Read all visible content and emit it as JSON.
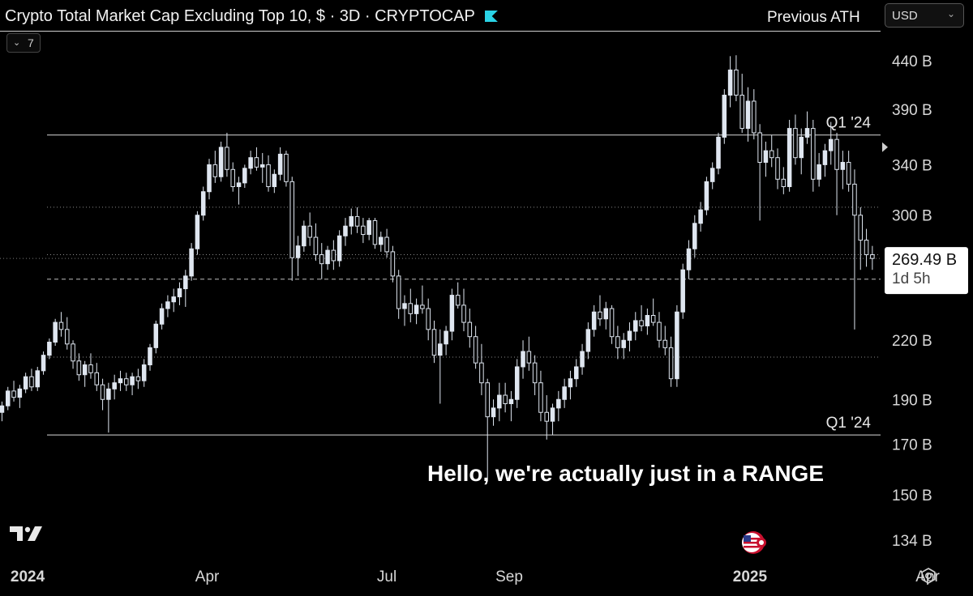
{
  "header": {
    "title": "Crypto Total Market Cap Excluding Top 10, $ · 3D · CRYPTOCAP",
    "previous_ath": "Previous ATH",
    "currency": "USD",
    "indicator_count": "7"
  },
  "icons": {
    "logo": "tradingview-logo",
    "flag": "us-flag-icon",
    "settings": "settings-gear-icon",
    "chevron": "chevron-down-icon"
  },
  "colors": {
    "background": "#000000",
    "candle_up_fill": "#dfe6f0",
    "candle_down_fill": "#000000",
    "candle_outline": "#dfe6f0",
    "brand": "#2ad3e6"
  },
  "chart_data": {
    "type": "candlestick",
    "title": "Crypto Total Market Cap Excluding Top 10, $ · 3D · CRYPTOCAP",
    "annotation": "Hello, we're actually just in a RANGE",
    "y_axis": {
      "scale": "log",
      "unit": "B",
      "ticks": [
        {
          "value": 440,
          "label": "440 B"
        },
        {
          "value": 390,
          "label": "390 B"
        },
        {
          "value": 340,
          "label": "340 B"
        },
        {
          "value": 300,
          "label": "300 B"
        },
        {
          "value": 220,
          "label": "220 B"
        },
        {
          "value": 190,
          "label": "190 B"
        },
        {
          "value": 170,
          "label": "170 B"
        },
        {
          "value": 150,
          "label": "150 B"
        },
        {
          "value": 134,
          "label": "134 B"
        }
      ],
      "range": [
        128,
        472
      ]
    },
    "x_axis": {
      "range": [
        "2023-12-18",
        "2025-04-24"
      ],
      "ticks": [
        {
          "date": "2024-01-01",
          "label": "2024",
          "bold": true
        },
        {
          "date": "2024-04-01",
          "label": "Apr",
          "bold": false
        },
        {
          "date": "2024-07-01",
          "label": "Jul",
          "bold": false
        },
        {
          "date": "2024-09-01",
          "label": "Sep",
          "bold": false
        },
        {
          "date": "2025-01-01",
          "label": "2025",
          "bold": true
        },
        {
          "date": "2025-04-01",
          "label": "Apr",
          "bold": false
        }
      ]
    },
    "levels": [
      {
        "value": 366,
        "label": "Q1 '24",
        "style": "solid"
      },
      {
        "value": 174,
        "label": "Q1 '24",
        "style": "solid"
      },
      {
        "value": 306,
        "label": "",
        "style": "dotted"
      },
      {
        "value": 272,
        "label": "",
        "style": "dotted"
      },
      {
        "value": 256,
        "label": "",
        "style": "dashed"
      },
      {
        "value": 211,
        "label": "",
        "style": "dotted"
      }
    ],
    "current_price": {
      "value": 269.49,
      "label": "269.49 B",
      "countdown": "1d 5h"
    },
    "candles_start": "2023-12-19",
    "candle_interval_days": 3,
    "candles": [
      [
        184,
        189,
        180,
        187
      ],
      [
        187,
        196,
        185,
        194
      ],
      [
        194,
        199,
        189,
        191
      ],
      [
        191,
        197,
        186,
        195
      ],
      [
        195,
        203,
        193,
        201
      ],
      [
        201,
        205,
        194,
        196
      ],
      [
        196,
        206,
        194,
        204
      ],
      [
        204,
        214,
        202,
        212
      ],
      [
        212,
        221,
        210,
        219
      ],
      [
        219,
        232,
        217,
        230
      ],
      [
        230,
        236,
        222,
        226
      ],
      [
        226,
        233,
        215,
        218
      ],
      [
        218,
        220,
        205,
        209
      ],
      [
        209,
        213,
        199,
        202
      ],
      [
        202,
        209,
        196,
        207
      ],
      [
        207,
        213,
        200,
        203
      ],
      [
        203,
        208,
        194,
        197
      ],
      [
        197,
        200,
        185,
        190
      ],
      [
        190,
        198,
        175,
        195
      ],
      [
        195,
        202,
        190,
        198
      ],
      [
        198,
        204,
        194,
        200
      ],
      [
        200,
        203,
        194,
        197
      ],
      [
        197,
        203,
        192,
        201
      ],
      [
        201,
        205,
        195,
        199
      ],
      [
        199,
        210,
        196,
        207
      ],
      [
        207,
        218,
        204,
        216
      ],
      [
        216,
        231,
        213,
        229
      ],
      [
        229,
        241,
        226,
        238
      ],
      [
        238,
        246,
        233,
        242
      ],
      [
        242,
        250,
        236,
        245
      ],
      [
        245,
        254,
        240,
        250
      ],
      [
        250,
        262,
        239,
        258
      ],
      [
        258,
        280,
        255,
        276
      ],
      [
        276,
        303,
        272,
        300
      ],
      [
        300,
        322,
        296,
        318
      ],
      [
        318,
        345,
        312,
        340
      ],
      [
        340,
        352,
        325,
        330
      ],
      [
        330,
        360,
        326,
        355
      ],
      [
        355,
        368,
        330,
        336
      ],
      [
        336,
        342,
        318,
        322
      ],
      [
        322,
        330,
        308,
        325
      ],
      [
        325,
        340,
        321,
        337
      ],
      [
        337,
        352,
        332,
        346
      ],
      [
        346,
        355,
        335,
        338
      ],
      [
        338,
        350,
        325,
        340
      ],
      [
        340,
        348,
        318,
        322
      ],
      [
        322,
        336,
        317,
        332
      ],
      [
        332,
        355,
        327,
        349
      ],
      [
        349,
        352,
        322,
        326
      ],
      [
        326,
        330,
        255,
        270
      ],
      [
        270,
        285,
        258,
        278
      ],
      [
        278,
        296,
        274,
        292
      ],
      [
        292,
        302,
        278,
        284
      ],
      [
        284,
        294,
        268,
        272
      ],
      [
        272,
        280,
        256,
        266
      ],
      [
        266,
        278,
        262,
        275
      ],
      [
        275,
        282,
        262,
        268
      ],
      [
        268,
        289,
        264,
        285
      ],
      [
        285,
        298,
        278,
        292
      ],
      [
        292,
        305,
        286,
        299
      ],
      [
        299,
        306,
        287,
        292
      ],
      [
        292,
        298,
        280,
        286
      ],
      [
        286,
        298,
        282,
        296
      ],
      [
        296,
        298,
        276,
        279
      ],
      [
        279,
        288,
        274,
        284
      ],
      [
        284,
        290,
        270,
        274
      ],
      [
        274,
        278,
        254,
        258
      ],
      [
        258,
        262,
        232,
        238
      ],
      [
        238,
        246,
        228,
        241
      ],
      [
        241,
        250,
        230,
        235
      ],
      [
        235,
        244,
        229,
        240
      ],
      [
        240,
        252,
        235,
        238
      ],
      [
        238,
        244,
        220,
        226
      ],
      [
        226,
        231,
        208,
        212
      ],
      [
        212,
        226,
        188,
        218
      ],
      [
        218,
        228,
        212,
        225
      ],
      [
        225,
        250,
        220,
        246
      ],
      [
        246,
        254,
        238,
        240
      ],
      [
        240,
        250,
        225,
        230
      ],
      [
        230,
        238,
        216,
        222
      ],
      [
        222,
        228,
        205,
        208
      ],
      [
        208,
        218,
        192,
        198
      ],
      [
        198,
        200,
        155,
        182
      ],
      [
        182,
        190,
        178,
        186
      ],
      [
        186,
        198,
        180,
        192
      ],
      [
        192,
        198,
        184,
        188
      ],
      [
        188,
        194,
        180,
        190
      ],
      [
        190,
        210,
        186,
        206
      ],
      [
        206,
        220,
        200,
        214
      ],
      [
        214,
        222,
        204,
        208
      ],
      [
        208,
        212,
        192,
        198
      ],
      [
        198,
        204,
        180,
        184
      ],
      [
        184,
        192,
        172,
        180
      ],
      [
        180,
        188,
        174,
        186
      ],
      [
        186,
        194,
        180,
        190
      ],
      [
        190,
        200,
        186,
        196
      ],
      [
        196,
        204,
        190,
        200
      ],
      [
        200,
        210,
        196,
        206
      ],
      [
        206,
        218,
        202,
        214
      ],
      [
        214,
        230,
        210,
        226
      ],
      [
        226,
        240,
        222,
        236
      ],
      [
        236,
        246,
        228,
        232
      ],
      [
        232,
        242,
        226,
        238
      ],
      [
        238,
        240,
        218,
        222
      ],
      [
        222,
        228,
        210,
        216
      ],
      [
        216,
        224,
        210,
        220
      ],
      [
        220,
        230,
        214,
        225
      ],
      [
        225,
        236,
        220,
        231
      ],
      [
        231,
        240,
        225,
        228
      ],
      [
        228,
        238,
        223,
        234
      ],
      [
        234,
        244,
        228,
        230
      ],
      [
        230,
        236,
        216,
        220
      ],
      [
        220,
        228,
        212,
        216
      ],
      [
        216,
        222,
        196,
        200
      ],
      [
        200,
        240,
        196,
        236
      ],
      [
        236,
        266,
        232,
        262
      ],
      [
        262,
        282,
        256,
        276
      ],
      [
        276,
        300,
        270,
        294
      ],
      [
        294,
        310,
        288,
        304
      ],
      [
        304,
        330,
        300,
        326
      ],
      [
        326,
        342,
        320,
        337
      ],
      [
        337,
        368,
        332,
        364
      ],
      [
        364,
        410,
        358,
        404
      ],
      [
        404,
        445,
        392,
        430
      ],
      [
        430,
        446,
        398,
        404
      ],
      [
        404,
        426,
        368,
        372
      ],
      [
        372,
        412,
        360,
        398
      ],
      [
        398,
        410,
        362,
        368
      ],
      [
        368,
        376,
        296,
        342
      ],
      [
        342,
        360,
        330,
        352
      ],
      [
        352,
        366,
        338,
        346
      ],
      [
        346,
        354,
        320,
        328
      ],
      [
        328,
        338,
        316,
        322
      ],
      [
        322,
        380,
        318,
        372
      ],
      [
        372,
        385,
        340,
        346
      ],
      [
        346,
        372,
        332,
        364
      ],
      [
        364,
        388,
        358,
        372
      ],
      [
        372,
        380,
        318,
        328
      ],
      [
        328,
        350,
        322,
        340
      ],
      [
        340,
        358,
        330,
        352
      ],
      [
        352,
        378,
        340,
        362
      ],
      [
        362,
        368,
        300,
        336
      ],
      [
        336,
        352,
        320,
        342
      ],
      [
        342,
        352,
        318,
        324
      ],
      [
        324,
        336,
        226,
        300
      ],
      [
        300,
        306,
        262,
        282
      ],
      [
        282,
        290,
        264,
        272
      ],
      [
        272,
        278,
        262,
        269.49
      ]
    ]
  }
}
